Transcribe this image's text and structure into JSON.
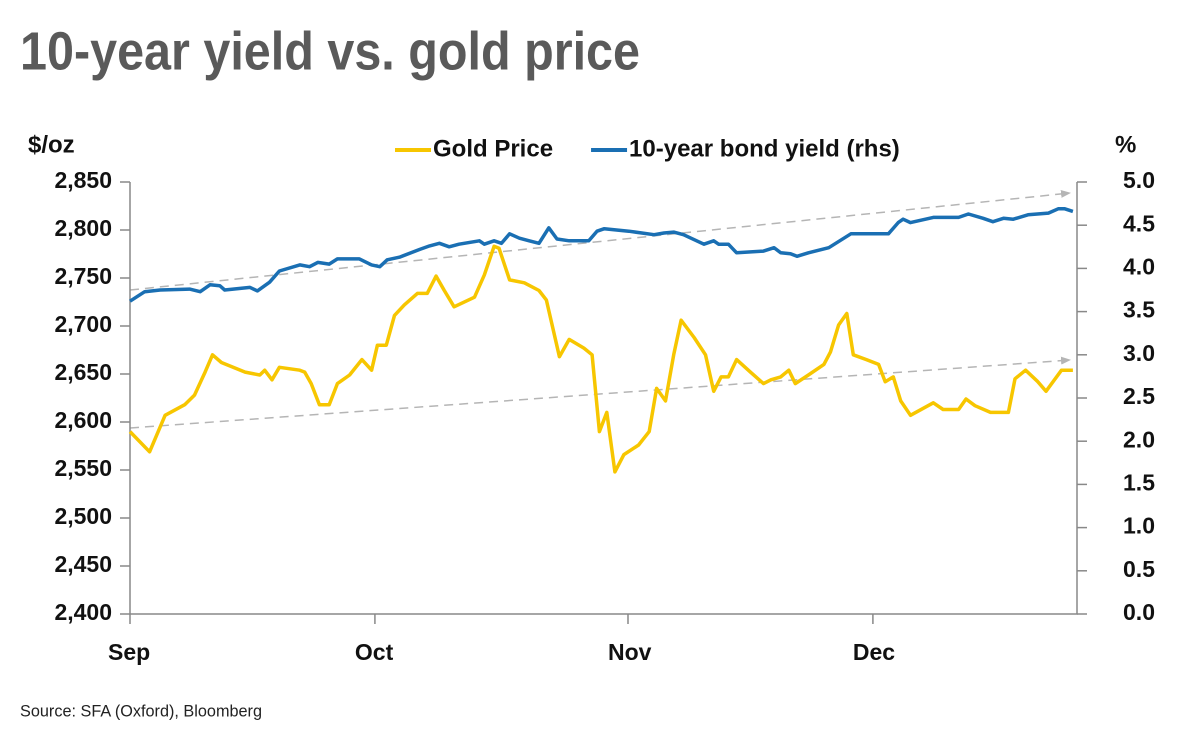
{
  "chart_data": {
    "type": "line",
    "title": "10-year yield vs. gold price",
    "ylabel": "$/oz",
    "y2label": "%",
    "source": "Source: SFA (Oxford), Bloomberg",
    "legend": "top",
    "xlim": [
      0,
      116
    ],
    "xticks": [
      {
        "value": 0,
        "label": "Sep"
      },
      {
        "value": 30,
        "label": "Oct"
      },
      {
        "value": 61,
        "label": "Nov"
      },
      {
        "value": 91,
        "label": "Dec"
      }
    ],
    "ylim": [
      2400,
      2850
    ],
    "yticks": [
      {
        "value": 2400,
        "label": "2,400"
      },
      {
        "value": 2450,
        "label": "2,450"
      },
      {
        "value": 2500,
        "label": "2,500"
      },
      {
        "value": 2550,
        "label": "2,550"
      },
      {
        "value": 2600,
        "label": "2,600"
      },
      {
        "value": 2650,
        "label": "2,650"
      },
      {
        "value": 2700,
        "label": "2,700"
      },
      {
        "value": 2750,
        "label": "2,750"
      },
      {
        "value": 2800,
        "label": "2,800"
      },
      {
        "value": 2850,
        "label": "2,850"
      }
    ],
    "y2lim": [
      0,
      5
    ],
    "y2ticks": [
      {
        "value": 0,
        "label": "0.0"
      },
      {
        "value": 0.5,
        "label": "0.5"
      },
      {
        "value": 1,
        "label": "1.0"
      },
      {
        "value": 1.5,
        "label": "1.5"
      },
      {
        "value": 2,
        "label": "2.0"
      },
      {
        "value": 2.5,
        "label": "2.5"
      },
      {
        "value": 3,
        "label": "3.0"
      },
      {
        "value": 3.5,
        "label": "3.5"
      },
      {
        "value": 4,
        "label": "4.0"
      },
      {
        "value": 4.5,
        "label": "4.5"
      },
      {
        "value": 5,
        "label": "5.0"
      }
    ],
    "series": [
      {
        "name": "Gold Price",
        "color": "#f7c600",
        "x": [
          0,
          2.4,
          4.3,
          6.7,
          7.9,
          9.2,
          10.1,
          11.2,
          14.1,
          15.9,
          16.5,
          17.4,
          18.3,
          20.8,
          21.4,
          22.2,
          23.2,
          24.4,
          25.4,
          26.9,
          28.4,
          29.6,
          30.3,
          31.4,
          32.4,
          33.6,
          35.2,
          36.4,
          37.5,
          38.5,
          39.7,
          42.2,
          43.4,
          44.6,
          45.2,
          46.5,
          48.3,
          50.1,
          51.0,
          52.6,
          53.8,
          55.6,
          56.6,
          57.5,
          58.4,
          59.4,
          60.5,
          62.3,
          63.6,
          64.5,
          65.6,
          66.6,
          67.5,
          69.1,
          70.5,
          71.5,
          72.4,
          73.3,
          74.3,
          76.0,
          77.6,
          78.5,
          79.7,
          80.7,
          81.5,
          83.1,
          85.0,
          85.8,
          86.8,
          87.8,
          88.6,
          90.2,
          91.7,
          92.5,
          93.5,
          94.4,
          95.6,
          98.4,
          99.6,
          101.5,
          102.4,
          103.5,
          105.4,
          107.6,
          108.4,
          109.7,
          111.2,
          112.2,
          114.1,
          115.5
        ],
        "values": [
          2590,
          2569,
          2607,
          2618,
          2628,
          2652,
          2670,
          2662,
          2652,
          2649,
          2654,
          2644,
          2657,
          2654,
          2652,
          2640,
          2618,
          2618,
          2640,
          2649,
          2665,
          2654,
          2680,
          2680,
          2711,
          2722,
          2734,
          2734,
          2752,
          2737,
          2720,
          2730,
          2753,
          2783,
          2781,
          2748,
          2745,
          2737,
          2727,
          2668,
          2686,
          2677,
          2670,
          2590,
          2610,
          2548,
          2566,
          2576,
          2590,
          2635,
          2622,
          2670,
          2706,
          2688,
          2670,
          2632,
          2647,
          2647,
          2665,
          2652,
          2640,
          2644,
          2647,
          2654,
          2640,
          2649,
          2660,
          2673,
          2701,
          2713,
          2670,
          2665,
          2660,
          2642,
          2647,
          2622,
          2607,
          2620,
          2613,
          2613,
          2624,
          2617,
          2610,
          2610,
          2645,
          2654,
          2642,
          2632,
          2654,
          2654
        ]
      },
      {
        "name": "10-year bond yield (rhs)",
        "color": "#1a6fb3",
        "axis": "y2",
        "x": [
          0,
          1.8,
          3.7,
          7.3,
          8.6,
          9.8,
          11.0,
          11.6,
          14.7,
          15.6,
          17.1,
          18.3,
          20.8,
          22.0,
          23.0,
          24.4,
          25.4,
          28.1,
          29.6,
          30.6,
          31.5,
          33.0,
          35.5,
          36.7,
          37.9,
          39.1,
          40.3,
          42.8,
          43.4,
          44.6,
          45.5,
          46.5,
          47.7,
          48.9,
          50.1,
          51.3,
          52.3,
          53.8,
          56.2,
          57.2,
          58.1,
          61.1,
          64.2,
          65.4,
          66.6,
          67.8,
          70.3,
          71.5,
          72.1,
          73.3,
          74.3,
          77.6,
          78.9,
          79.7,
          80.9,
          81.7,
          83.1,
          85.6,
          88.3,
          92.9,
          94.1,
          94.7,
          95.6,
          98.4,
          101.5,
          102.7,
          104.5,
          105.7,
          107.0,
          108.2,
          110.0,
          112.5,
          113.7,
          114.5,
          115.5
        ],
        "values": [
          3.62,
          3.73,
          3.75,
          3.76,
          3.73,
          3.81,
          3.8,
          3.75,
          3.78,
          3.74,
          3.84,
          3.97,
          4.04,
          4.02,
          4.07,
          4.05,
          4.11,
          4.11,
          4.04,
          4.02,
          4.1,
          4.13,
          4.22,
          4.26,
          4.29,
          4.25,
          4.28,
          4.32,
          4.28,
          4.32,
          4.29,
          4.4,
          4.35,
          4.32,
          4.29,
          4.47,
          4.34,
          4.32,
          4.32,
          4.43,
          4.46,
          4.43,
          4.39,
          4.41,
          4.42,
          4.39,
          4.28,
          4.32,
          4.28,
          4.28,
          4.18,
          4.2,
          4.24,
          4.18,
          4.17,
          4.14,
          4.18,
          4.24,
          4.4,
          4.4,
          4.53,
          4.57,
          4.53,
          4.59,
          4.59,
          4.63,
          4.58,
          4.54,
          4.58,
          4.57,
          4.62,
          4.64,
          4.69,
          4.69,
          4.66
        ]
      }
    ]
  }
}
